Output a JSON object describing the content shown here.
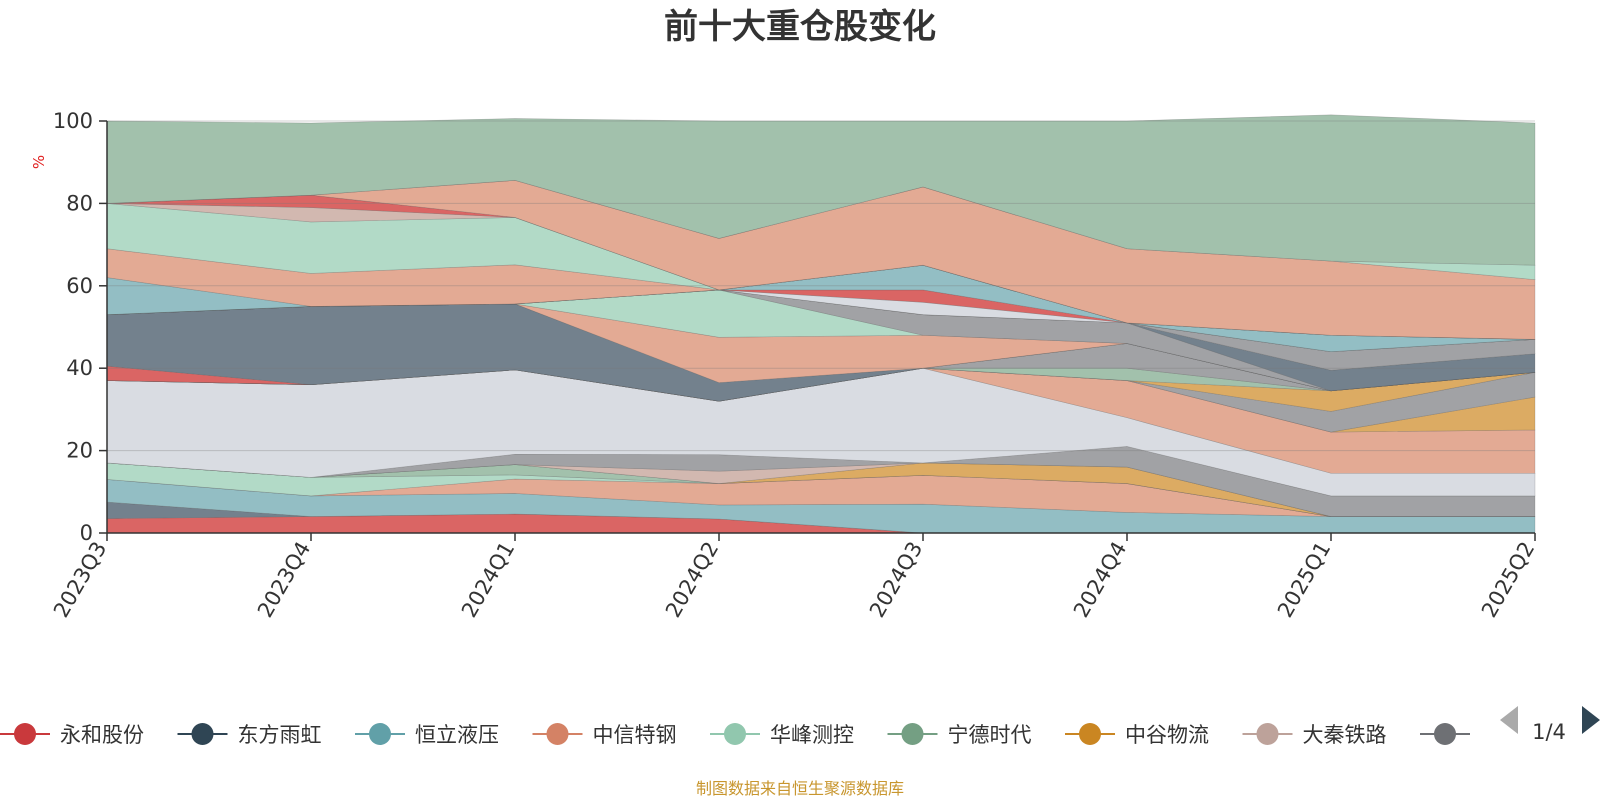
{
  "chart_data": {
    "type": "area",
    "stacked": true,
    "title": "前十大重仓股变化",
    "ylabel": "%",
    "ylim": [
      0,
      100
    ],
    "yticks": [
      0,
      20,
      40,
      60,
      80,
      100
    ],
    "grid": true,
    "categories": [
      "2023Q3",
      "2023Q4",
      "2024Q1",
      "2024Q2",
      "2024Q3",
      "2024Q4",
      "2025Q1",
      "2025Q2"
    ],
    "series": [
      {
        "name": "永和股份",
        "color": "#d9605f",
        "values": [
          3.5,
          4.0,
          4.6,
          3.4,
          0.0,
          0.0,
          0.0,
          0.0
        ]
      },
      {
        "name": "东方雨虹",
        "color": "#6e7d89",
        "values": [
          4.0,
          0.0,
          0.0,
          0.0,
          0.0,
          0.0,
          0.0,
          0.0
        ]
      },
      {
        "name": "恒立液压",
        "color": "#8fbcc2",
        "values": [
          5.5,
          5.0,
          5.0,
          3.4,
          7.0,
          5.0,
          4.0,
          4.0
        ]
      },
      {
        "name": "中信特钢",
        "color": "#e2a791",
        "values": [
          0.0,
          0.0,
          3.5,
          5.2,
          7.0,
          7.0,
          0.0,
          0.0
        ]
      },
      {
        "name": "华峰测控",
        "color": "#b0d9c5",
        "values": [
          4.0,
          4.5,
          1.0,
          0.0,
          0.0,
          0.0,
          0.0,
          0.0
        ]
      },
      {
        "name": "宁德时代",
        "color": "#9fbfa9",
        "values": [
          0.0,
          0.0,
          2.5,
          0.0,
          0.0,
          0.0,
          0.0,
          0.0
        ]
      },
      {
        "name": "中谷物流",
        "color": "#dba85e",
        "values": [
          0.0,
          0.0,
          0.0,
          0.0,
          3.0,
          4.0,
          0.0,
          0.0
        ]
      },
      {
        "name": "大秦铁路",
        "color": "#d1b6ad",
        "values": [
          0.0,
          0.0,
          0.0,
          3.0,
          0.0,
          0.0,
          0.0,
          0.0
        ]
      },
      {
        "name": "",
        "color": "#9e9fa2",
        "values": [
          0.0,
          0.0,
          2.5,
          4.0,
          0.0,
          5.0,
          5.0,
          5.0
        ]
      },
      {
        "name": "",
        "color": "#d8dbe1",
        "values": [
          20.0,
          22.5,
          20.5,
          13.0,
          23.0,
          7.0,
          5.5,
          5.5
        ]
      },
      {
        "name": "",
        "color": "#e2a791",
        "values": [
          0.0,
          0.0,
          0.0,
          0.0,
          0.0,
          9.0,
          10.0,
          10.5
        ]
      },
      {
        "name": "",
        "color": "#dba85e",
        "values": [
          0.0,
          0.0,
          0.0,
          0.0,
          0.0,
          0.0,
          0.0,
          8.0
        ]
      },
      {
        "name": "",
        "color": "#9e9fa2",
        "values": [
          0.0,
          0.0,
          0.0,
          0.0,
          0.0,
          0.0,
          5.0,
          6.0
        ]
      },
      {
        "name": "",
        "color": "#dba85e",
        "values": [
          0.0,
          0.0,
          0.0,
          0.0,
          0.0,
          0.0,
          5.0,
          0.0
        ]
      },
      {
        "name": "",
        "color": "#9fbfa9",
        "values": [
          0.0,
          0.0,
          0.0,
          0.0,
          0.0,
          3.0,
          0.0,
          0.0
        ]
      },
      {
        "name": "",
        "color": "#9e9fa2",
        "values": [
          0.0,
          0.0,
          0.0,
          0.0,
          0.0,
          6.0,
          0.0,
          0.0
        ]
      },
      {
        "name": "",
        "color": "#d9605f",
        "values": [
          3.5,
          0.0,
          0.0,
          0.0,
          0.0,
          0.0,
          0.0,
          0.0
        ]
      },
      {
        "name": "",
        "color": "#6e7d89",
        "values": [
          12.5,
          19.0,
          16.0,
          4.5,
          0.0,
          0.0,
          0.0,
          0.0
        ]
      },
      {
        "name": "",
        "color": "#e2a791",
        "values": [
          0.0,
          0.0,
          0.0,
          11.0,
          8.0,
          0.0,
          0.0,
          0.0
        ]
      },
      {
        "name": "",
        "color": "#b0d9c5",
        "values": [
          0.0,
          0.0,
          0.0,
          11.5,
          0.0,
          0.0,
          0.0,
          0.0
        ]
      },
      {
        "name": "",
        "color": "#9e9fa2",
        "values": [
          0.0,
          0.0,
          0.0,
          0.0,
          5.0,
          5.0,
          0.0,
          0.0
        ]
      },
      {
        "name": "",
        "color": "#6e7d89",
        "values": [
          0.0,
          0.0,
          0.0,
          0.0,
          0.0,
          0.0,
          5.0,
          4.5
        ]
      },
      {
        "name": "",
        "color": "#9e9fa2",
        "values": [
          0.0,
          0.0,
          0.0,
          0.0,
          0.0,
          0.0,
          4.5,
          3.5
        ]
      },
      {
        "name": "",
        "color": "#d8dbe1",
        "values": [
          0.0,
          0.0,
          0.0,
          0.0,
          3.0,
          0.0,
          0.0,
          0.0
        ]
      },
      {
        "name": "",
        "color": "#d9605f",
        "values": [
          0.0,
          0.0,
          0.0,
          0.0,
          3.0,
          0.0,
          0.0,
          0.0
        ]
      },
      {
        "name": "",
        "color": "#8fbcc2",
        "values": [
          9.0,
          0.0,
          0.0,
          0.0,
          6.0,
          0.0,
          4.0,
          0.0
        ]
      },
      {
        "name": "",
        "color": "#e2a791",
        "values": [
          7.0,
          8.0,
          9.5,
          0.0,
          0.0,
          0.0,
          0.0,
          0.0
        ]
      },
      {
        "name": "",
        "color": "#b0d9c5",
        "values": [
          11.0,
          12.5,
          11.5,
          0.0,
          0.0,
          0.0,
          0.0,
          0.0
        ]
      },
      {
        "name": "",
        "color": "#d1b6ad",
        "values": [
          0.0,
          3.5,
          0.0,
          0.0,
          0.0,
          0.0,
          0.0,
          0.0
        ]
      },
      {
        "name": "",
        "color": "#d9605f",
        "values": [
          0.0,
          3.0,
          0.0,
          0.0,
          0.0,
          0.0,
          0.0,
          0.0
        ]
      },
      {
        "name": "",
        "color": "#e2a791",
        "values": [
          0.0,
          0.0,
          9.0,
          12.5,
          19.0,
          18.0,
          18.0,
          14.5
        ]
      },
      {
        "name": "",
        "color": "#b0d9c5",
        "values": [
          0.0,
          0.0,
          0.0,
          0.0,
          0.0,
          0.0,
          0.0,
          3.5
        ]
      },
      {
        "name": "",
        "color": "#9fbfa9",
        "values": [
          20.0,
          17.5,
          15.0,
          28.5,
          16.0,
          31.0,
          35.5,
          34.5
        ]
      }
    ],
    "legend": {
      "position": "bottom",
      "items": [
        "永和股份",
        "东方雨虹",
        "恒立液压",
        "中信特钢",
        "华峰测控",
        "宁德时代",
        "中谷物流",
        "大秦铁路",
        ""
      ],
      "colors": [
        "#c9393c",
        "#2f4554",
        "#61a0a8",
        "#d48265",
        "#91c7ae",
        "#749f83",
        "#ca8622",
        "#bda29a",
        "#6e7074"
      ],
      "page": "1/4"
    }
  },
  "source": "制图数据来自恒生聚源数据库"
}
